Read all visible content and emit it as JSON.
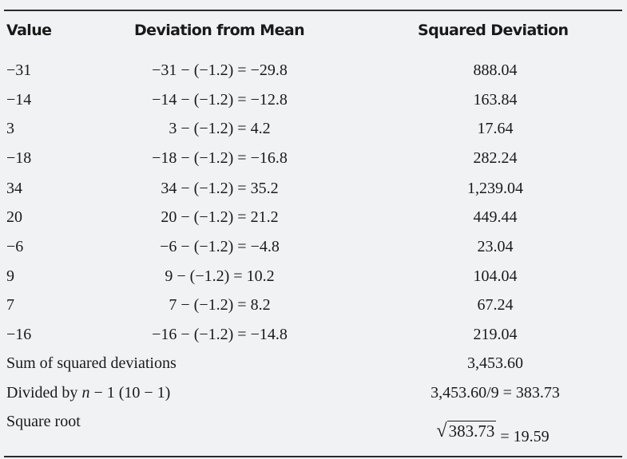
{
  "headers": {
    "value": "Value",
    "deviation": "Deviation from Mean",
    "squared": "Squared Deviation"
  },
  "rows": [
    {
      "value": "−31",
      "deviation": "−31 − (−1.2) = −29.8",
      "squared": "888.04"
    },
    {
      "value": "−14",
      "deviation": "−14 − (−1.2) = −12.8",
      "squared": "163.84"
    },
    {
      "value": "3",
      "deviation": "3 − (−1.2) = 4.2",
      "squared": "17.64"
    },
    {
      "value": "−18",
      "deviation": "−18 − (−1.2) = −16.8",
      "squared": "282.24"
    },
    {
      "value": "34",
      "deviation": "34 − (−1.2) = 35.2",
      "squared": "1,239.04"
    },
    {
      "value": "20",
      "deviation": "20 − (−1.2) = 21.2",
      "squared": "449.44"
    },
    {
      "value": "−6",
      "deviation": "−6 − (−1.2) = −4.8",
      "squared": "23.04"
    },
    {
      "value": "9",
      "deviation": "9 − (−1.2) = 10.2",
      "squared": "104.04"
    },
    {
      "value": "7",
      "deviation": "7 − (−1.2) = 8.2",
      "squared": "67.24"
    },
    {
      "value": "−16",
      "deviation": "−16 − (−1.2) = −14.8",
      "squared": "219.04"
    }
  ],
  "summary": {
    "sum_label": "Sum of squared deviations",
    "sum_value": "3,453.60",
    "div_label_pre": "Divided by ",
    "div_label_n": "n",
    "div_label_post": " − 1 (10 − 1)",
    "div_value": "3,453.60/9 = 383.73",
    "sqrt_label": "Square root",
    "sqrt_radicand": "383.73",
    "sqrt_result": "= 19.59"
  }
}
